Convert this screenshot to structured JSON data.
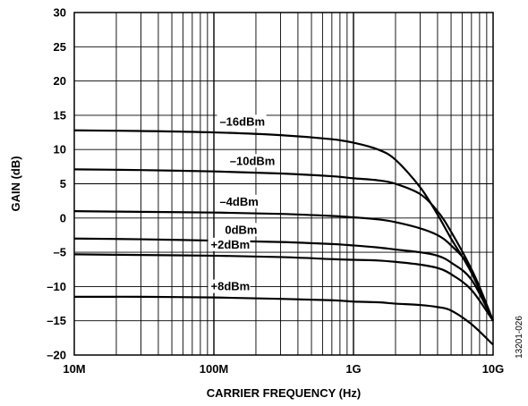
{
  "chart_data": {
    "type": "line",
    "title": "",
    "xlabel": "CARRIER FREQUENCY (Hz)",
    "ylabel": "GAIN (dB)",
    "x_scale": "log",
    "xlim": [
      10000000,
      10000000000
    ],
    "ylim": [
      -20,
      30
    ],
    "x_ticks": [
      {
        "value": 10000000,
        "label": "10M"
      },
      {
        "value": 100000000,
        "label": "100M"
      },
      {
        "value": 1000000000,
        "label": "1G"
      },
      {
        "value": 10000000000,
        "label": "10G"
      }
    ],
    "y_ticks": [
      {
        "value": 30,
        "label": "30"
      },
      {
        "value": 25,
        "label": "25"
      },
      {
        "value": 20,
        "label": "20"
      },
      {
        "value": 15,
        "label": "15"
      },
      {
        "value": 10,
        "label": "10"
      },
      {
        "value": 5,
        "label": "5"
      },
      {
        "value": 0,
        "label": "0"
      },
      {
        "value": -5,
        "label": "–5"
      },
      {
        "value": -10,
        "label": "–10"
      },
      {
        "value": -15,
        "label": "–15"
      },
      {
        "value": -20,
        "label": "–20"
      }
    ],
    "grid": true,
    "x": [
      10000000,
      30000000,
      100000000,
      300000000,
      700000000,
      1000000000,
      1500000000,
      2000000000,
      3000000000,
      4000000000,
      5000000000,
      7000000000,
      10000000000
    ],
    "series": [
      {
        "name": "–16dBm",
        "values": [
          12.8,
          12.7,
          12.5,
          12.1,
          11.5,
          11.0,
          10.0,
          8.5,
          4.5,
          0.5,
          -3.0,
          -8.0,
          -15.0
        ]
      },
      {
        "name": "–10dBm",
        "values": [
          7.1,
          7.0,
          6.8,
          6.5,
          6.1,
          5.8,
          5.5,
          5.0,
          3.5,
          1.0,
          -2.0,
          -7.5,
          -15.0
        ]
      },
      {
        "name": "–4dBm",
        "values": [
          1.0,
          0.9,
          0.8,
          0.6,
          0.3,
          0.1,
          -0.2,
          -0.6,
          -1.5,
          -2.5,
          -4.0,
          -7.5,
          -15.0
        ]
      },
      {
        "name": "0dBm",
        "values": [
          -3.0,
          -3.1,
          -3.3,
          -3.5,
          -3.8,
          -4.0,
          -4.3,
          -4.6,
          -5.0,
          -5.5,
          -6.5,
          -9.0,
          -15.0
        ]
      },
      {
        "name": "+2dBm",
        "values": [
          -5.3,
          -5.4,
          -5.5,
          -5.7,
          -6.0,
          -6.1,
          -6.2,
          -6.4,
          -6.8,
          -7.3,
          -8.2,
          -10.5,
          -15.0
        ]
      },
      {
        "name": "+8dBm",
        "values": [
          -11.5,
          -11.5,
          -11.6,
          -11.8,
          -12.0,
          -12.2,
          -12.3,
          -12.5,
          -12.7,
          -13.0,
          -13.5,
          -15.5,
          -18.5
        ]
      }
    ],
    "series_label_x": [
      110000000,
      130000000,
      110000000,
      120000000,
      95000000,
      95000000
    ],
    "side_id": "13201-026"
  }
}
